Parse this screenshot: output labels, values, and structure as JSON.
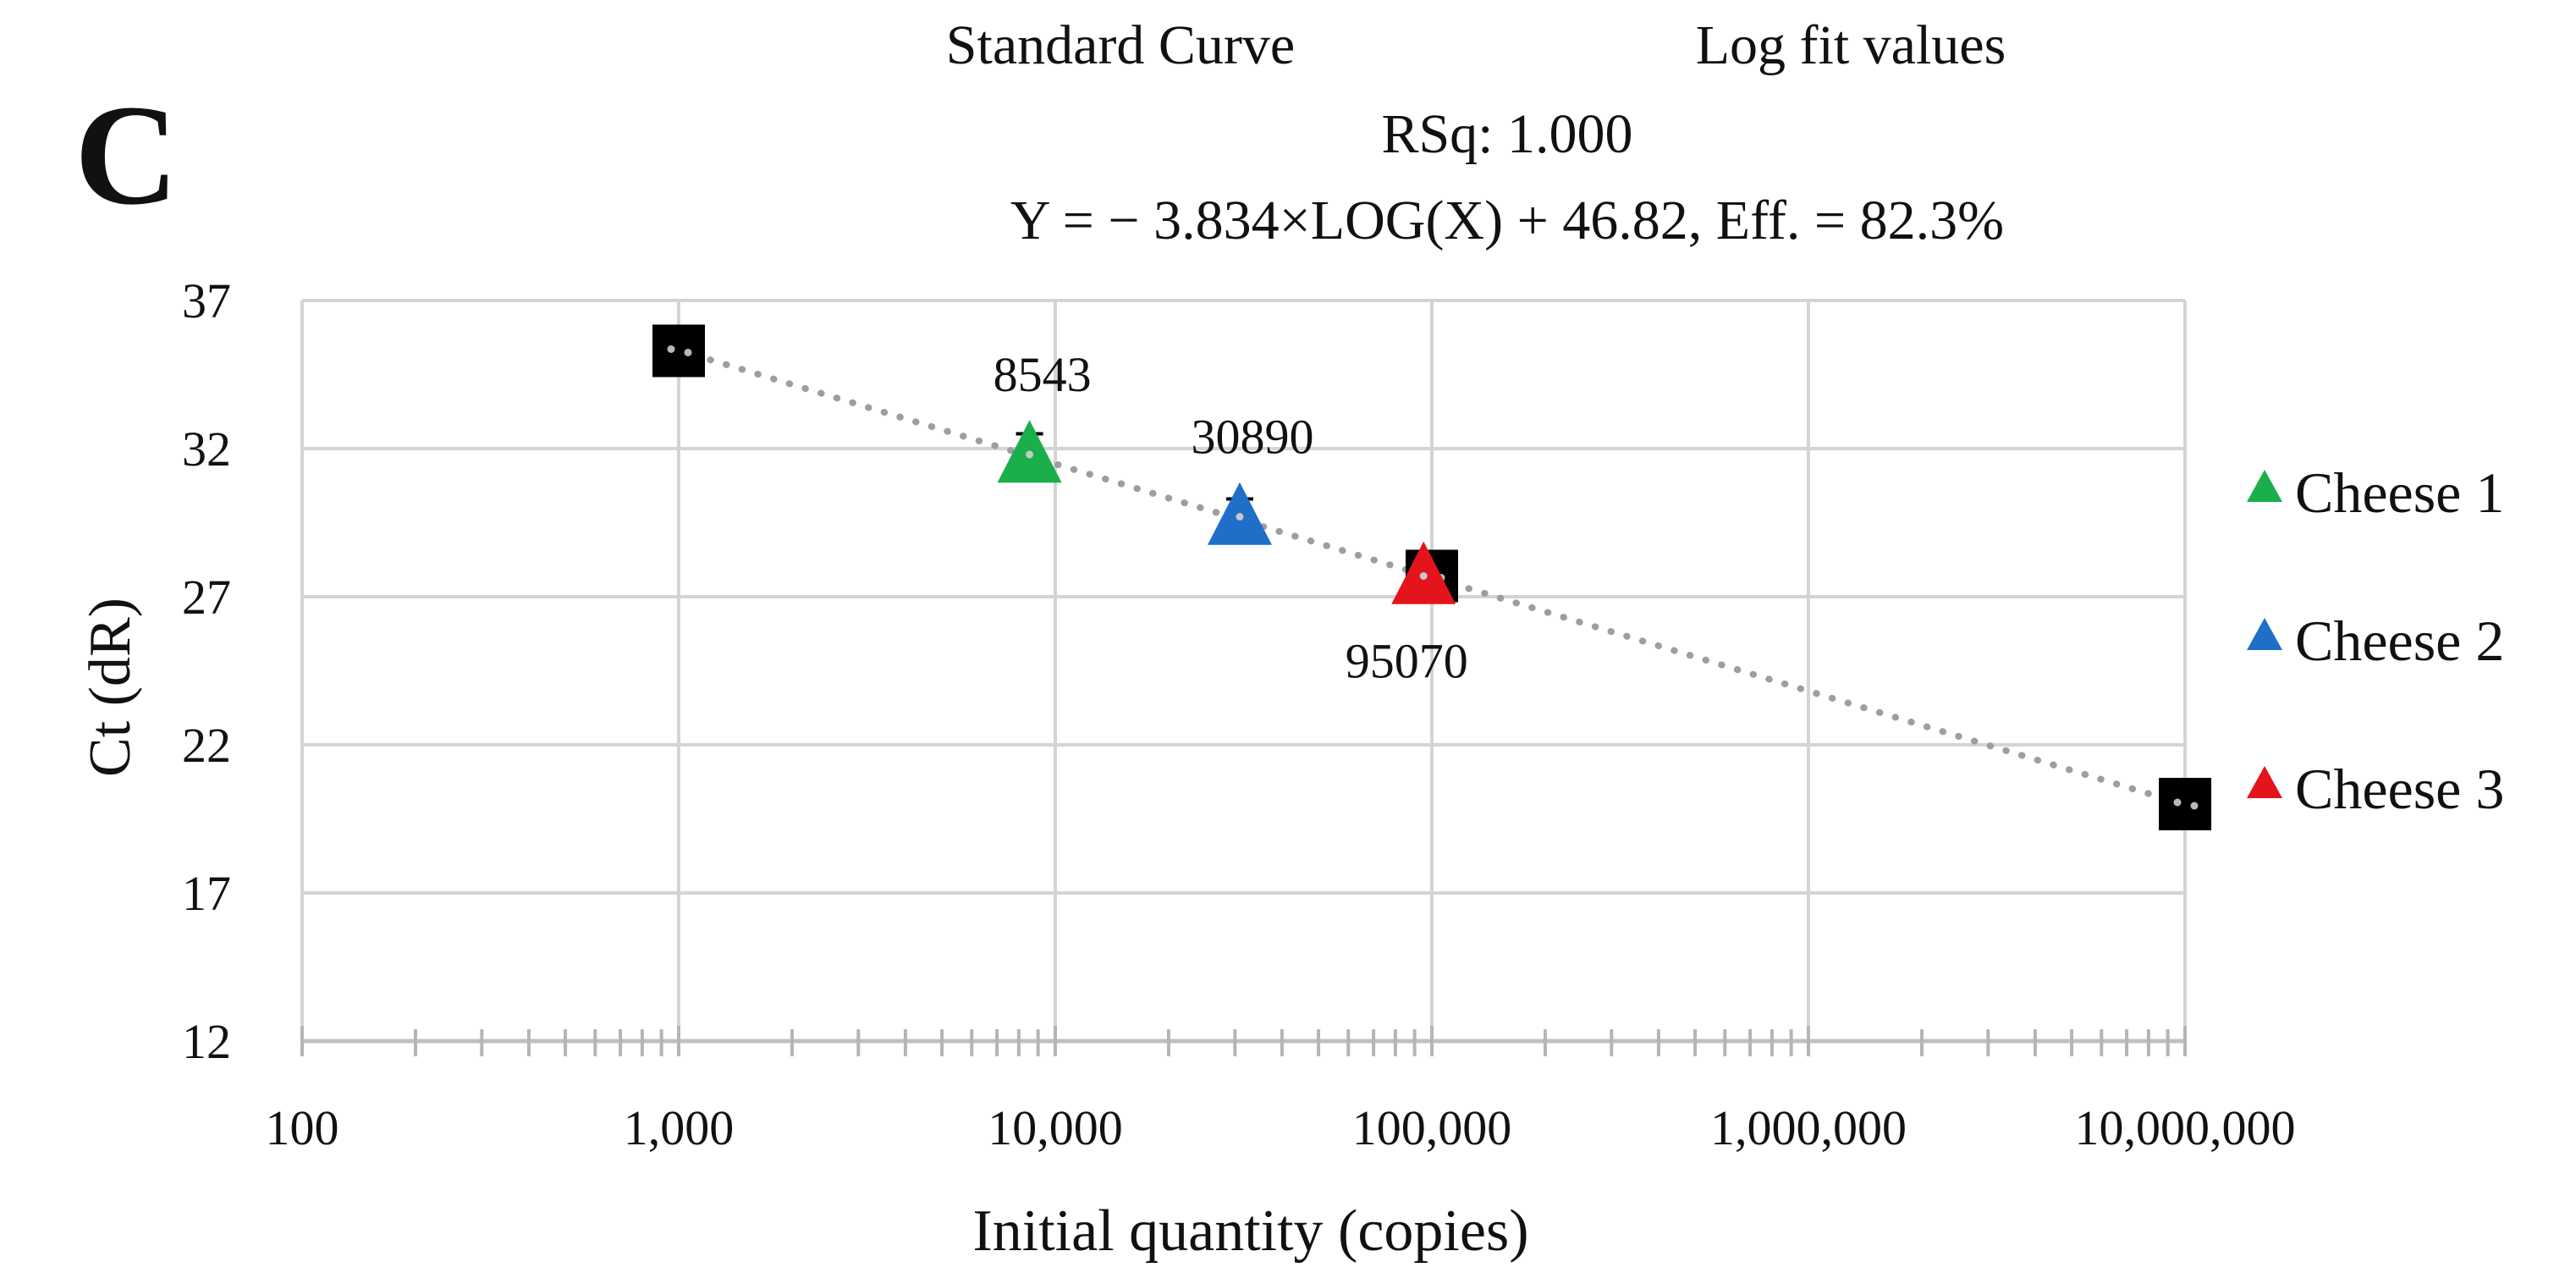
{
  "chart_data": {
    "type": "scatter",
    "panel_label": "C",
    "title": {
      "line1_left": "Standard Curve",
      "line1_right": "Log fit values",
      "line2": "RSq: 1.000",
      "line3": "Y = − 3.834×LOG(X) + 46.82, Eff. = 82.3%"
    },
    "xlabel": "Initial quantity (copies)",
    "ylabel": "Ct (dR)",
    "x_scale": "log10",
    "xlim": [
      100,
      10000000
    ],
    "ylim": [
      12,
      37
    ],
    "x_ticks": [
      {
        "value": 100,
        "label": "100"
      },
      {
        "value": 1000,
        "label": "1,000"
      },
      {
        "value": 10000,
        "label": "10,000"
      },
      {
        "value": 100000,
        "label": "100,000"
      },
      {
        "value": 1000000,
        "label": "1,000,000"
      },
      {
        "value": 10000000,
        "label": "10,000,000"
      }
    ],
    "y_ticks": [
      {
        "value": 37,
        "label": "37"
      },
      {
        "value": 32,
        "label": "32"
      },
      {
        "value": 27,
        "label": "27"
      },
      {
        "value": 22,
        "label": "22"
      },
      {
        "value": 17,
        "label": "17"
      },
      {
        "value": 12,
        "label": "12"
      }
    ],
    "grid": true,
    "fit_line": {
      "slope": -3.834,
      "intercept": 46.82,
      "style": "dotted",
      "color": "#9e9e9e",
      "x_range": [
        1000,
        10000000
      ]
    },
    "standards": {
      "color": "#000000",
      "marker": "square",
      "x": [
        1000,
        100000,
        10000000
      ],
      "y": [
        35.3,
        27.7,
        20.0
      ]
    },
    "series": [
      {
        "name": "Cheese 1",
        "color": "#1aaf4b",
        "marker": "triangle",
        "x": 8543,
        "y": 31.8,
        "error": 0.7,
        "label": "8543",
        "label_position": "above"
      },
      {
        "name": "Cheese 2",
        "color": "#1f6fc8",
        "marker": "triangle",
        "x": 30890,
        "y": 29.7,
        "error": 0.6,
        "label": "30890",
        "label_position": "above"
      },
      {
        "name": "Cheese 3",
        "color": "#e3141b",
        "marker": "triangle",
        "x": 95070,
        "y": 27.7,
        "error": 0.6,
        "label": "95070",
        "label_position": "below"
      }
    ],
    "legend": {
      "position": "right",
      "entries": [
        "Cheese 1",
        "Cheese 2",
        "Cheese 3"
      ]
    }
  }
}
